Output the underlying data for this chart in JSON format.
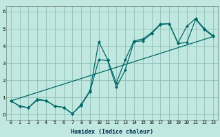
{
  "xlabel": "Humidex (Indice chaleur)",
  "bg_color": "#c0e8e0",
  "grid_color": "#90c0b8",
  "line_color": "#006868",
  "xlim": [
    -0.5,
    23.5
  ],
  "ylim": [
    -0.3,
    6.3
  ],
  "xticks": [
    0,
    1,
    2,
    3,
    4,
    5,
    6,
    7,
    8,
    9,
    10,
    11,
    12,
    13,
    14,
    15,
    16,
    17,
    18,
    19,
    20,
    21,
    22,
    23
  ],
  "yticks": [
    0,
    1,
    2,
    3,
    4,
    5,
    6
  ],
  "line1_x": [
    0,
    1,
    2,
    3,
    4,
    5,
    6,
    7,
    8,
    9,
    10,
    11,
    12,
    13,
    14,
    15,
    16,
    17,
    18,
    19,
    20,
    21,
    22,
    23
  ],
  "line1_y": [
    0.8,
    0.5,
    0.4,
    0.85,
    0.82,
    0.5,
    0.42,
    0.05,
    0.6,
    1.4,
    4.25,
    3.2,
    1.85,
    3.2,
    4.3,
    4.4,
    4.78,
    5.28,
    5.3,
    4.18,
    5.15,
    5.6,
    5.0,
    4.6
  ],
  "line2_x": [
    0,
    1,
    2,
    3,
    4,
    5,
    6,
    7,
    8,
    9,
    10,
    11,
    12,
    13,
    14,
    15,
    16,
    17,
    18,
    19,
    20,
    21,
    22,
    23
  ],
  "line2_y": [
    0.8,
    0.5,
    0.4,
    0.9,
    0.82,
    0.5,
    0.42,
    0.05,
    0.55,
    1.35,
    3.2,
    3.15,
    1.6,
    2.6,
    4.25,
    4.3,
    4.72,
    5.25,
    5.3,
    4.15,
    4.2,
    5.55,
    4.95,
    4.55
  ],
  "line3_x": [
    0,
    23
  ],
  "line3_y": [
    0.8,
    4.55
  ],
  "xlabel_color": "#003050",
  "xlabel_fontsize": 6.0,
  "tick_fontsize": 4.8,
  "linewidth": 0.9,
  "markersize": 2.2
}
